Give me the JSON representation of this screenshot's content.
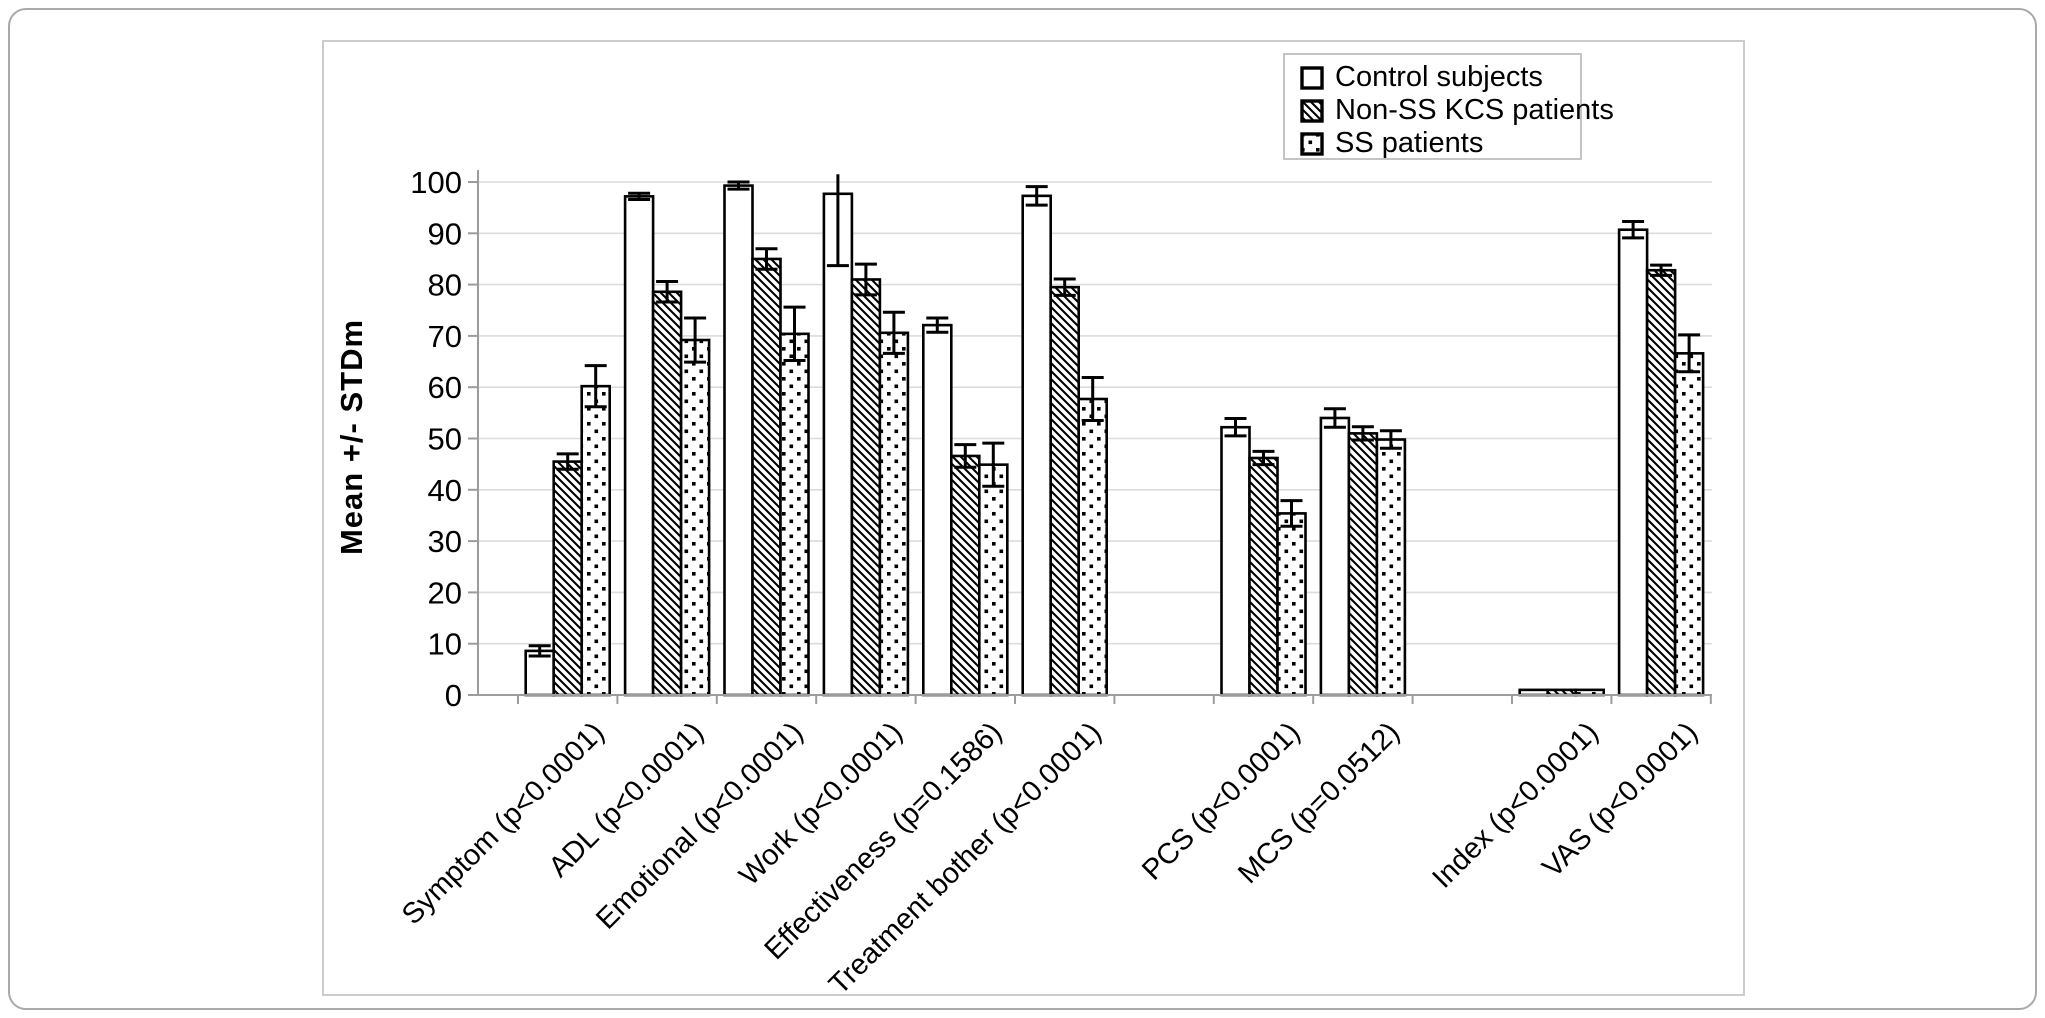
{
  "figure": {
    "kind": "static-journal-figure",
    "background": "#ffffff",
    "frame_color": "#cccccc",
    "outer_border_color": "#a9a9a9"
  },
  "chart_data": {
    "type": "bar",
    "title": "",
    "xlabel": "",
    "ylabel": "Mean +/- STDm",
    "ylim": [
      0,
      100
    ],
    "yticks": [
      0,
      10,
      20,
      30,
      40,
      50,
      60,
      70,
      80,
      90,
      100
    ],
    "grid": "horizontal",
    "grid_color": "#dcdcdc",
    "axis_color": "#9c9c9c",
    "bar_outline_color": "#000000",
    "legend_position": "top-right",
    "error_bars": "mean +/- STDm whiskers with caps",
    "series": [
      "Control subjects",
      "Non-SS KCS patients",
      "SS patients"
    ],
    "series_styles": [
      "plain-white",
      "diagonal-hatch",
      "dotted"
    ],
    "slots": 12,
    "categories": [
      {
        "label": "Symptom (p<0.0001)",
        "slot": 0,
        "values": [
          8.6,
          45.5,
          60.2
        ],
        "errors": [
          1.0,
          1.5,
          4.0
        ]
      },
      {
        "label": "ADL (p<0.0001)",
        "slot": 1,
        "values": [
          97.2,
          78.6,
          69.2
        ],
        "errors": [
          0.6,
          2.0,
          4.3
        ]
      },
      {
        "label": "Emotional (p<0.0001)",
        "slot": 2,
        "values": [
          99.3,
          85.0,
          70.4
        ],
        "errors": [
          0.7,
          2.0,
          5.2
        ]
      },
      {
        "label": "Work (p<0.0001)",
        "slot": 3,
        "values": [
          97.7,
          81.0,
          70.6
        ],
        "errors": [
          14.0,
          3.0,
          4.0
        ]
      },
      {
        "label": "Effectiveness (p=0.1586)",
        "slot": 4,
        "values": [
          72.1,
          46.6,
          44.9
        ],
        "errors": [
          1.4,
          2.2,
          4.2
        ]
      },
      {
        "label": "Treatment bother (p<0.0001)",
        "slot": 5,
        "values": [
          97.3,
          79.5,
          57.7
        ],
        "errors": [
          1.8,
          1.6,
          4.2
        ]
      },
      {
        "label": "PCS (p<0.0001)",
        "slot": 7,
        "values": [
          52.2,
          46.2,
          35.4
        ],
        "errors": [
          1.7,
          1.3,
          2.5
        ]
      },
      {
        "label": "MCS (p=0.0512)",
        "slot": 8,
        "values": [
          54.0,
          51.0,
          49.8
        ],
        "errors": [
          1.8,
          1.3,
          1.7
        ]
      },
      {
        "label": "Index (p<0.0001)",
        "slot": 10,
        "values": [
          1.0,
          1.0,
          1.0
        ],
        "errors": [
          0.1,
          0.1,
          0.1
        ]
      },
      {
        "label": "VAS (p<0.0001)",
        "slot": 11,
        "values": [
          90.7,
          82.8,
          66.6
        ],
        "errors": [
          1.6,
          1.0,
          3.6
        ]
      }
    ]
  }
}
